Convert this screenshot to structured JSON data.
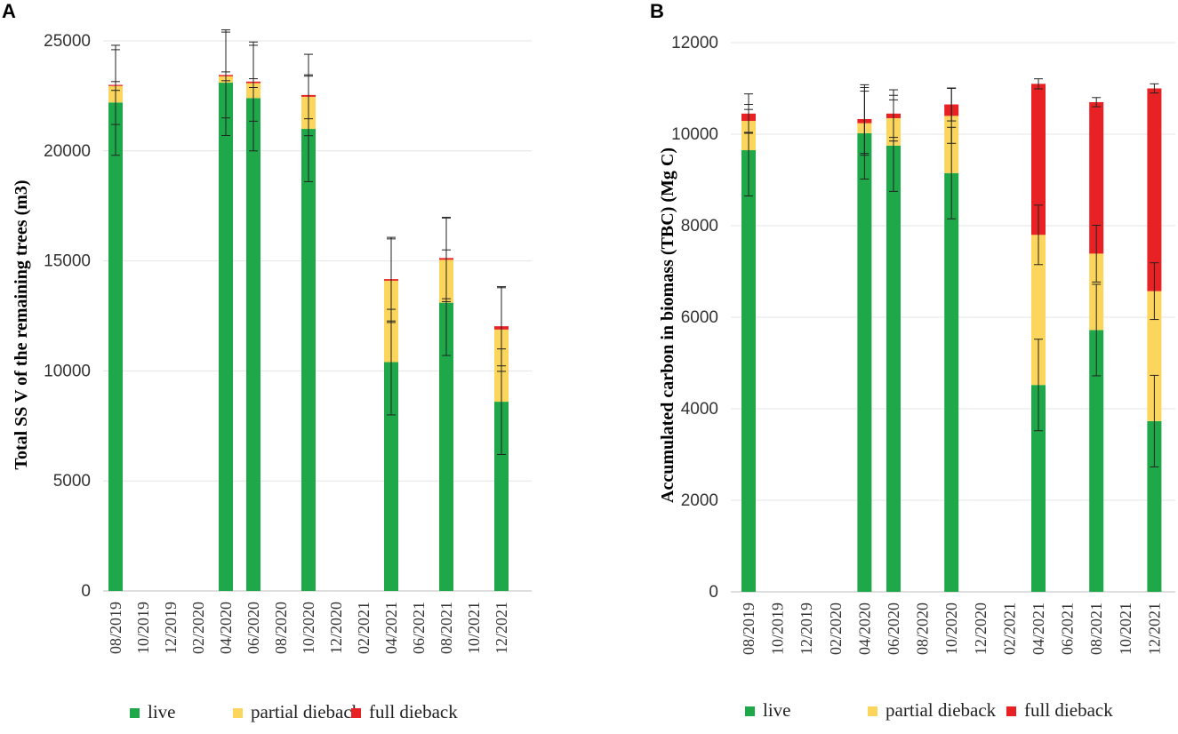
{
  "colors": {
    "live": "#1fa84a",
    "partial": "#fcd55d",
    "full": "#e82224"
  },
  "chart_data": [
    {
      "panel": "A",
      "type": "bar",
      "stacked": true,
      "title": "",
      "xlabel": "",
      "ylabel": "Total SS V of the remaining trees  (m3)",
      "ylim": [
        0,
        25000
      ],
      "yticks": [
        0,
        5000,
        10000,
        15000,
        20000,
        25000
      ],
      "categories": [
        "08/2019",
        "10/2019",
        "12/2019",
        "02/2020",
        "04/2020",
        "06/2020",
        "08/2020",
        "10/2020",
        "12/2020",
        "02/2021",
        "04/2021",
        "06/2021",
        "08/2021",
        "10/2021",
        "12/2021"
      ],
      "series": [
        {
          "name": "live",
          "color_key": "live",
          "values": [
            22200,
            0,
            0,
            0,
            23100,
            22400,
            0,
            21000,
            0,
            0,
            10400,
            0,
            13100,
            0,
            8600
          ]
        },
        {
          "name": "partial dieback",
          "color_key": "partial",
          "values": [
            750,
            0,
            0,
            0,
            290,
            680,
            0,
            1460,
            0,
            0,
            3700,
            0,
            1950,
            0,
            3280
          ]
        },
        {
          "name": "full dieback",
          "color_key": "full",
          "values": [
            50,
            0,
            0,
            0,
            60,
            70,
            0,
            80,
            0,
            0,
            70,
            0,
            80,
            0,
            150
          ]
        }
      ],
      "errors": [
        [],
        [],
        [],
        [],
        [],
        [],
        [],
        [],
        [],
        [],
        [],
        [],
        [],
        [],
        []
      ],
      "error_bars": [
        {
          "i": 0,
          "v": 22200,
          "e": 2400
        },
        {
          "i": 0,
          "v": 22950,
          "e": 200
        },
        {
          "i": 0,
          "v": 23000,
          "e": 1800
        },
        {
          "i": 4,
          "v": 23100,
          "e": 2400
        },
        {
          "i": 4,
          "v": 23390,
          "e": 200
        },
        {
          "i": 4,
          "v": 23450,
          "e": 1950
        },
        {
          "i": 5,
          "v": 22400,
          "e": 2400
        },
        {
          "i": 5,
          "v": 23080,
          "e": 200
        },
        {
          "i": 5,
          "v": 23150,
          "e": 1800
        },
        {
          "i": 7,
          "v": 21000,
          "e": 2400
        },
        {
          "i": 7,
          "v": 22460,
          "e": 1000
        },
        {
          "i": 7,
          "v": 22540,
          "e": 1850
        },
        {
          "i": 10,
          "v": 10400,
          "e": 2400
        },
        {
          "i": 10,
          "v": 14100,
          "e": 1900
        },
        {
          "i": 10,
          "v": 14170,
          "e": 1900
        },
        {
          "i": 12,
          "v": 13100,
          "e": 2400
        },
        {
          "i": 12,
          "v": 15050,
          "e": 1900
        },
        {
          "i": 12,
          "v": 15130,
          "e": 1850
        },
        {
          "i": 14,
          "v": 8600,
          "e": 2400
        },
        {
          "i": 14,
          "v": 11880,
          "e": 1900
        },
        {
          "i": 14,
          "v": 12030,
          "e": 1800
        }
      ],
      "legend": [
        "live",
        "partial dieback",
        "full dieback"
      ],
      "legend_position": "bottom"
    },
    {
      "panel": "B",
      "type": "bar",
      "stacked": true,
      "title": "",
      "xlabel": "",
      "ylabel": "Accumulated carbon in biomass (TBC)   (Mg C)",
      "ylim": [
        0,
        12000
      ],
      "yticks": [
        0,
        2000,
        4000,
        6000,
        8000,
        10000,
        12000
      ],
      "categories": [
        "08/2019",
        "10/2019",
        "12/2019",
        "02/2020",
        "04/2020",
        "06/2020",
        "08/2020",
        "10/2020",
        "12/2020",
        "02/2021",
        "04/2021",
        "06/2021",
        "08/2021",
        "10/2021",
        "12/2021"
      ],
      "series": [
        {
          "name": "live",
          "color_key": "live",
          "values": [
            9650,
            0,
            0,
            0,
            10020,
            9750,
            0,
            9150,
            0,
            0,
            4520,
            0,
            5720,
            0,
            3730
          ]
        },
        {
          "name": "partial dieback",
          "color_key": "partial",
          "values": [
            640,
            0,
            0,
            0,
            220,
            600,
            0,
            1250,
            0,
            0,
            3280,
            0,
            1670,
            0,
            2840
          ]
        },
        {
          "name": "full dieback",
          "color_key": "full",
          "values": [
            160,
            0,
            0,
            0,
            90,
            100,
            0,
            250,
            0,
            0,
            3300,
            0,
            3310,
            0,
            4430
          ]
        }
      ],
      "error_bars": [
        {
          "i": 0,
          "v": 9650,
          "e": 1000
        },
        {
          "i": 0,
          "v": 10290,
          "e": 250
        },
        {
          "i": 0,
          "v": 10450,
          "e": 430
        },
        {
          "i": 4,
          "v": 10020,
          "e": 1000
        },
        {
          "i": 4,
          "v": 10240,
          "e": 700
        },
        {
          "i": 4,
          "v": 10330,
          "e": 750
        },
        {
          "i": 5,
          "v": 9750,
          "e": 1000
        },
        {
          "i": 5,
          "v": 10350,
          "e": 500
        },
        {
          "i": 5,
          "v": 10450,
          "e": 520
        },
        {
          "i": 7,
          "v": 9150,
          "e": 1000
        },
        {
          "i": 7,
          "v": 10400,
          "e": 600
        },
        {
          "i": 7,
          "v": 10650,
          "e": 360
        },
        {
          "i": 10,
          "v": 4520,
          "e": 1000
        },
        {
          "i": 10,
          "v": 7800,
          "e": 650
        },
        {
          "i": 10,
          "v": 11100,
          "e": 110
        },
        {
          "i": 12,
          "v": 5720,
          "e": 1000
        },
        {
          "i": 12,
          "v": 7390,
          "e": 620
        },
        {
          "i": 12,
          "v": 10700,
          "e": 100
        },
        {
          "i": 14,
          "v": 3730,
          "e": 1000
        },
        {
          "i": 14,
          "v": 6570,
          "e": 620
        },
        {
          "i": 14,
          "v": 11000,
          "e": 100
        }
      ],
      "legend": [
        "live",
        "partial dieback",
        "full dieback"
      ],
      "legend_position": "bottom"
    }
  ]
}
